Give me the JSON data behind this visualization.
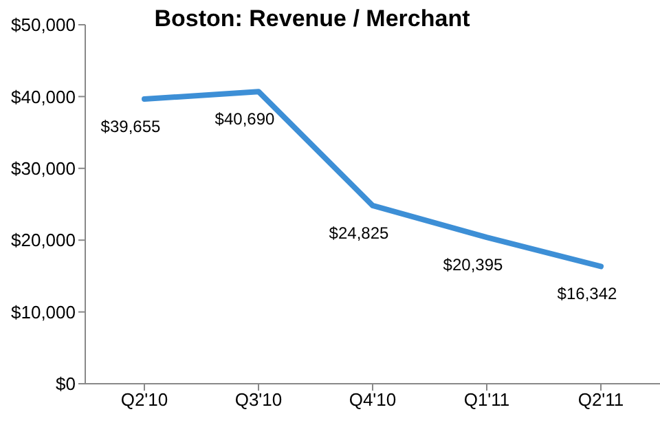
{
  "chart_data": {
    "type": "line",
    "title": "Boston: Revenue / Merchant",
    "categories": [
      "Q2'10",
      "Q3'10",
      "Q4'10",
      "Q1'11",
      "Q2'11"
    ],
    "series": [
      {
        "color": "#3d8fd6",
        "values": [
          39655,
          40690,
          24825,
          20395,
          16342
        ],
        "value_labels": [
          "$39,655",
          "$40,690",
          "$24,825",
          "$20,395",
          "$16,342"
        ]
      }
    ],
    "ylim": [
      0,
      50000
    ],
    "yticks": [
      {
        "value": 0,
        "label": "$0"
      },
      {
        "value": 10000,
        "label": "$10,000"
      },
      {
        "value": 20000,
        "label": "$20,000"
      },
      {
        "value": 30000,
        "label": "$30,000"
      },
      {
        "value": 40000,
        "label": "$40,000"
      },
      {
        "value": 50000,
        "label": "$50,000"
      }
    ],
    "grid": false,
    "legend": false,
    "marker": "none",
    "line_style": "solid"
  }
}
